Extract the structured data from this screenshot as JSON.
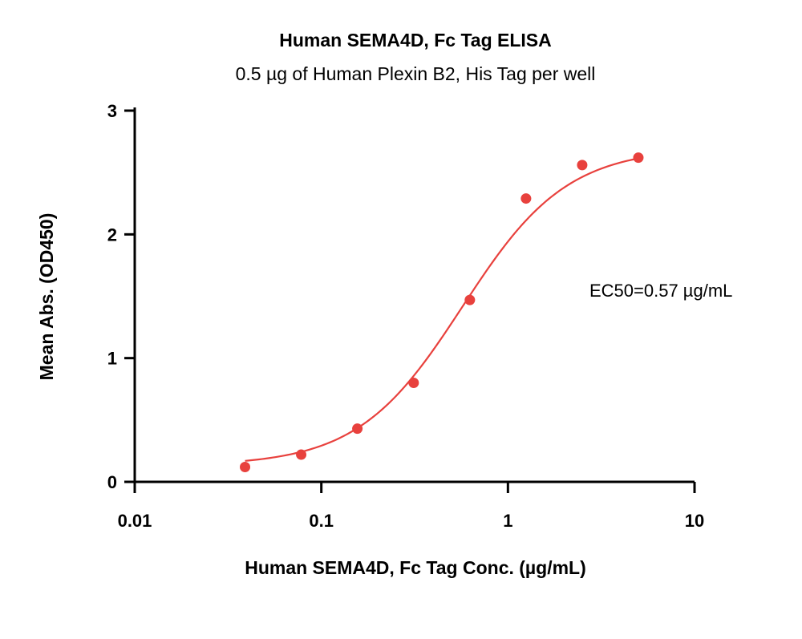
{
  "chart_data": {
    "type": "scatter",
    "title": "Human SEMA4D, Fc Tag ELISA",
    "subtitle": "0.5 µg of Human Plexin B2, His Tag per well",
    "xlabel": "Human SEMA4D, Fc Tag Conc. (µg/mL)",
    "ylabel": "Mean Abs. (OD450)",
    "x_scale": "log",
    "xlim": [
      0.01,
      10
    ],
    "ylim": [
      0,
      3
    ],
    "x_ticks": [
      0.01,
      0.1,
      1,
      10
    ],
    "x_tick_labels": [
      "0.01",
      "0.1",
      "1",
      "10"
    ],
    "y_ticks": [
      0,
      1,
      2,
      3
    ],
    "y_tick_labels": [
      "0",
      "1",
      "2",
      "3"
    ],
    "grid": false,
    "annotation": "EC50=0.57 µg/mL",
    "color": "#e8413d",
    "series": [
      {
        "x": [
          0.039,
          0.078,
          0.156,
          0.3125,
          0.625,
          1.25,
          2.5,
          5
        ],
        "y": [
          0.12,
          0.22,
          0.43,
          0.8,
          1.47,
          2.29,
          2.56,
          2.62
        ]
      }
    ],
    "fit": {
      "model": "4PL",
      "bottom": 0.13,
      "top": 2.7,
      "ec50": 0.57,
      "hill": 1.55,
      "x_range": [
        0.039,
        5
      ]
    }
  }
}
